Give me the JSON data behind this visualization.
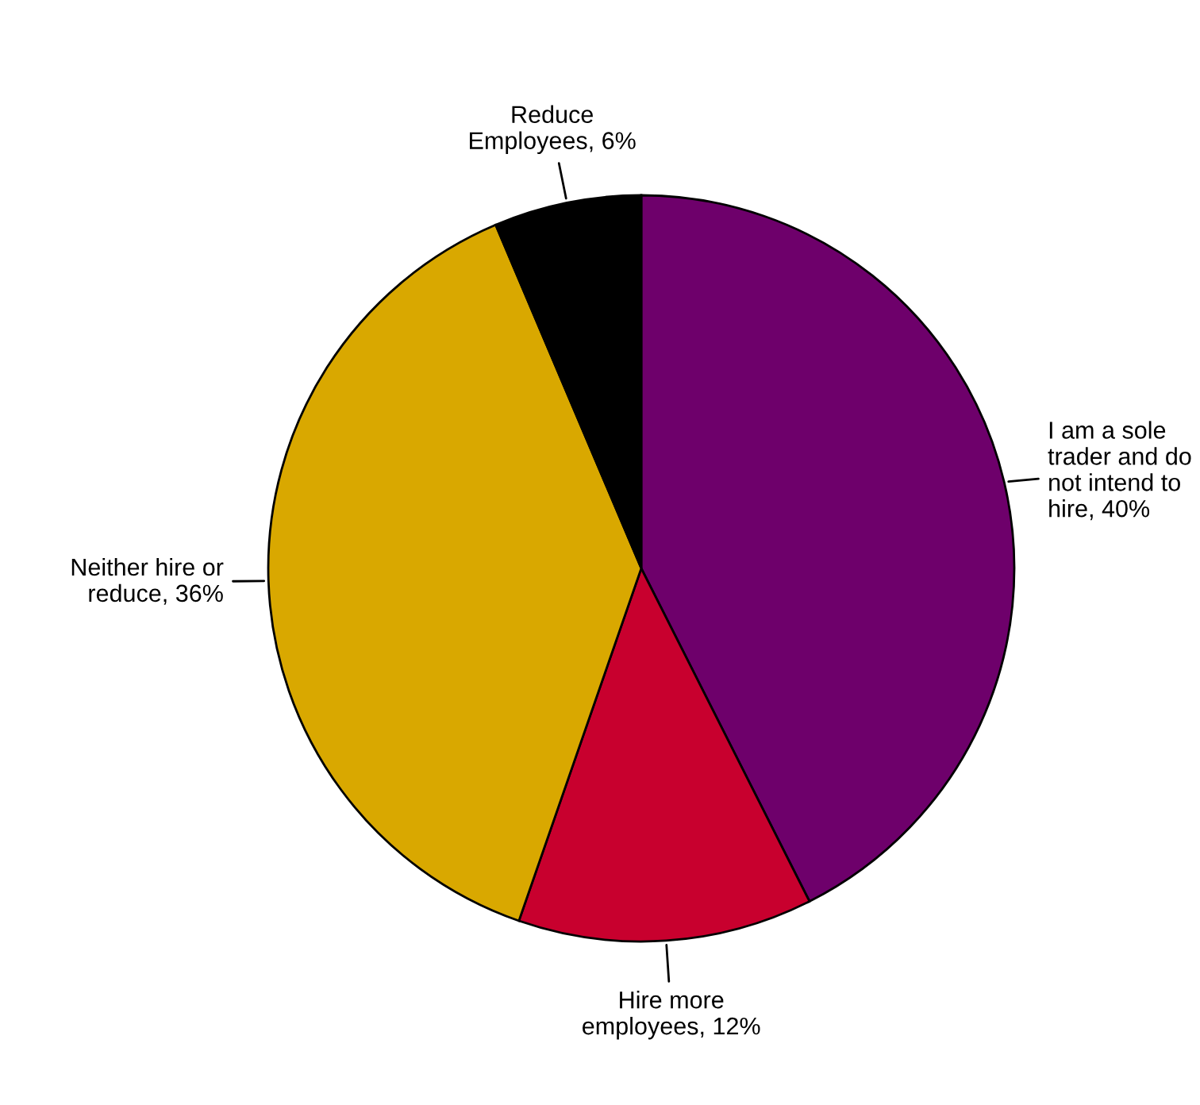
{
  "chart_data": {
    "type": "pie",
    "categories": [
      "I am a sole\ntrader and do\nnot intend to\nhire",
      "Hire more\nemployees",
      "Neither hire or\nreduce",
      "Reduce\nEmployees"
    ],
    "values": [
      40,
      12,
      36,
      6
    ],
    "value_labels": [
      "40%",
      "12%",
      "36%",
      "6%"
    ],
    "colors": [
      "#6e006b",
      "#c8002e",
      "#d9a800",
      "#000000"
    ],
    "legend": false
  }
}
